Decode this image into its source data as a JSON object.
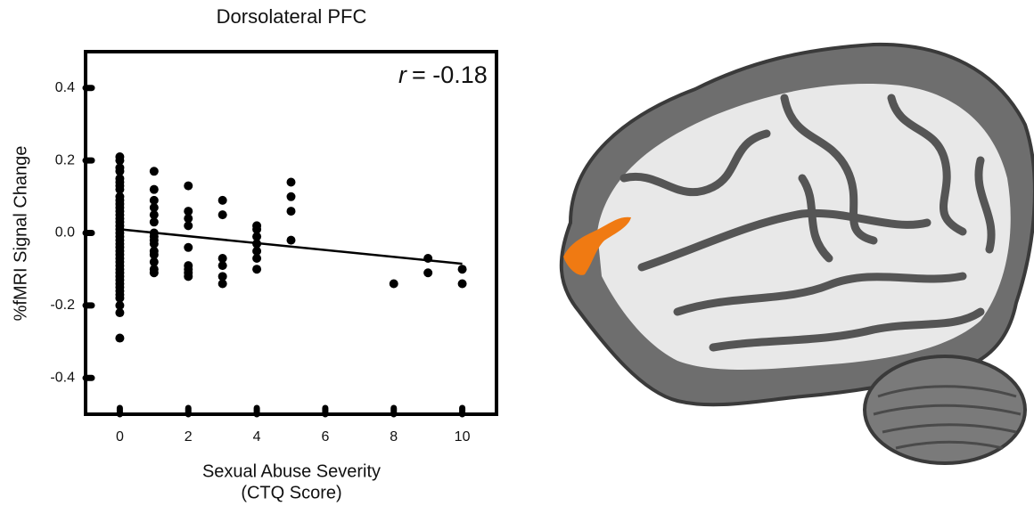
{
  "chart_data": {
    "type": "scatter",
    "title": "Dorsolateral PFC",
    "xlabel": [
      "Sexual Abuse Severity",
      "(CTQ Score)"
    ],
    "ylabel": "%fMRI Signal Change",
    "annotation_symbol": "r",
    "annotation": "= -0.18",
    "xlim": [
      -1,
      11
    ],
    "ylim": [
      -0.5,
      0.5
    ],
    "xticks": [
      0,
      2,
      4,
      6,
      8,
      10
    ],
    "yticks": [
      0.4,
      0.2,
      {
        "value": 0,
        "label": "0.0"
      },
      -0.2,
      -0.4
    ],
    "color": "#000000",
    "x": [
      0,
      0,
      0,
      0,
      0,
      0,
      0,
      0,
      0,
      0,
      0,
      0,
      0,
      0,
      0,
      0,
      0,
      0,
      0,
      0,
      0,
      0,
      0,
      0,
      0,
      0,
      0,
      0,
      0,
      0,
      0,
      0,
      0,
      0,
      0,
      0,
      0,
      0,
      0,
      0,
      1,
      1,
      1,
      1,
      1,
      1,
      1,
      1,
      1,
      1,
      1,
      1,
      1,
      1,
      1,
      2,
      2,
      2,
      2,
      2,
      2,
      2,
      2,
      2,
      3,
      3,
      3,
      3,
      3,
      3,
      4,
      4,
      4,
      4,
      4,
      4,
      4,
      5,
      5,
      5,
      5,
      8,
      9,
      9,
      10,
      10
    ],
    "y": [
      0.21,
      0.2,
      0.18,
      0.17,
      0.15,
      0.14,
      0.13,
      0.12,
      0.1,
      0.09,
      0.08,
      0.07,
      0.06,
      0.05,
      0.04,
      0.03,
      0.02,
      0.01,
      0,
      -0.01,
      -0.02,
      -0.03,
      -0.04,
      -0.05,
      -0.06,
      -0.07,
      -0.08,
      -0.09,
      -0.1,
      -0.11,
      -0.12,
      -0.13,
      -0.14,
      -0.15,
      -0.16,
      -0.17,
      -0.18,
      -0.2,
      -0.22,
      -0.29,
      0.17,
      0.12,
      0.09,
      0.07,
      0.05,
      0.03,
      0,
      -0.01,
      -0.02,
      -0.03,
      -0.05,
      -0.06,
      -0.08,
      -0.1,
      -0.11,
      0.13,
      0.06,
      0.04,
      0.02,
      -0.04,
      -0.09,
      -0.1,
      -0.11,
      -0.12,
      0.09,
      0.05,
      -0.07,
      -0.09,
      -0.12,
      -0.14,
      0.02,
      0.01,
      -0.01,
      -0.03,
      -0.05,
      -0.07,
      -0.1,
      0.14,
      0.1,
      0.06,
      -0.02,
      -0.14,
      -0.07,
      -0.11,
      -0.1,
      -0.14
    ],
    "fit_line": {
      "x": [
        0,
        10
      ],
      "y": [
        0.01,
        -0.085
      ]
    }
  }
}
